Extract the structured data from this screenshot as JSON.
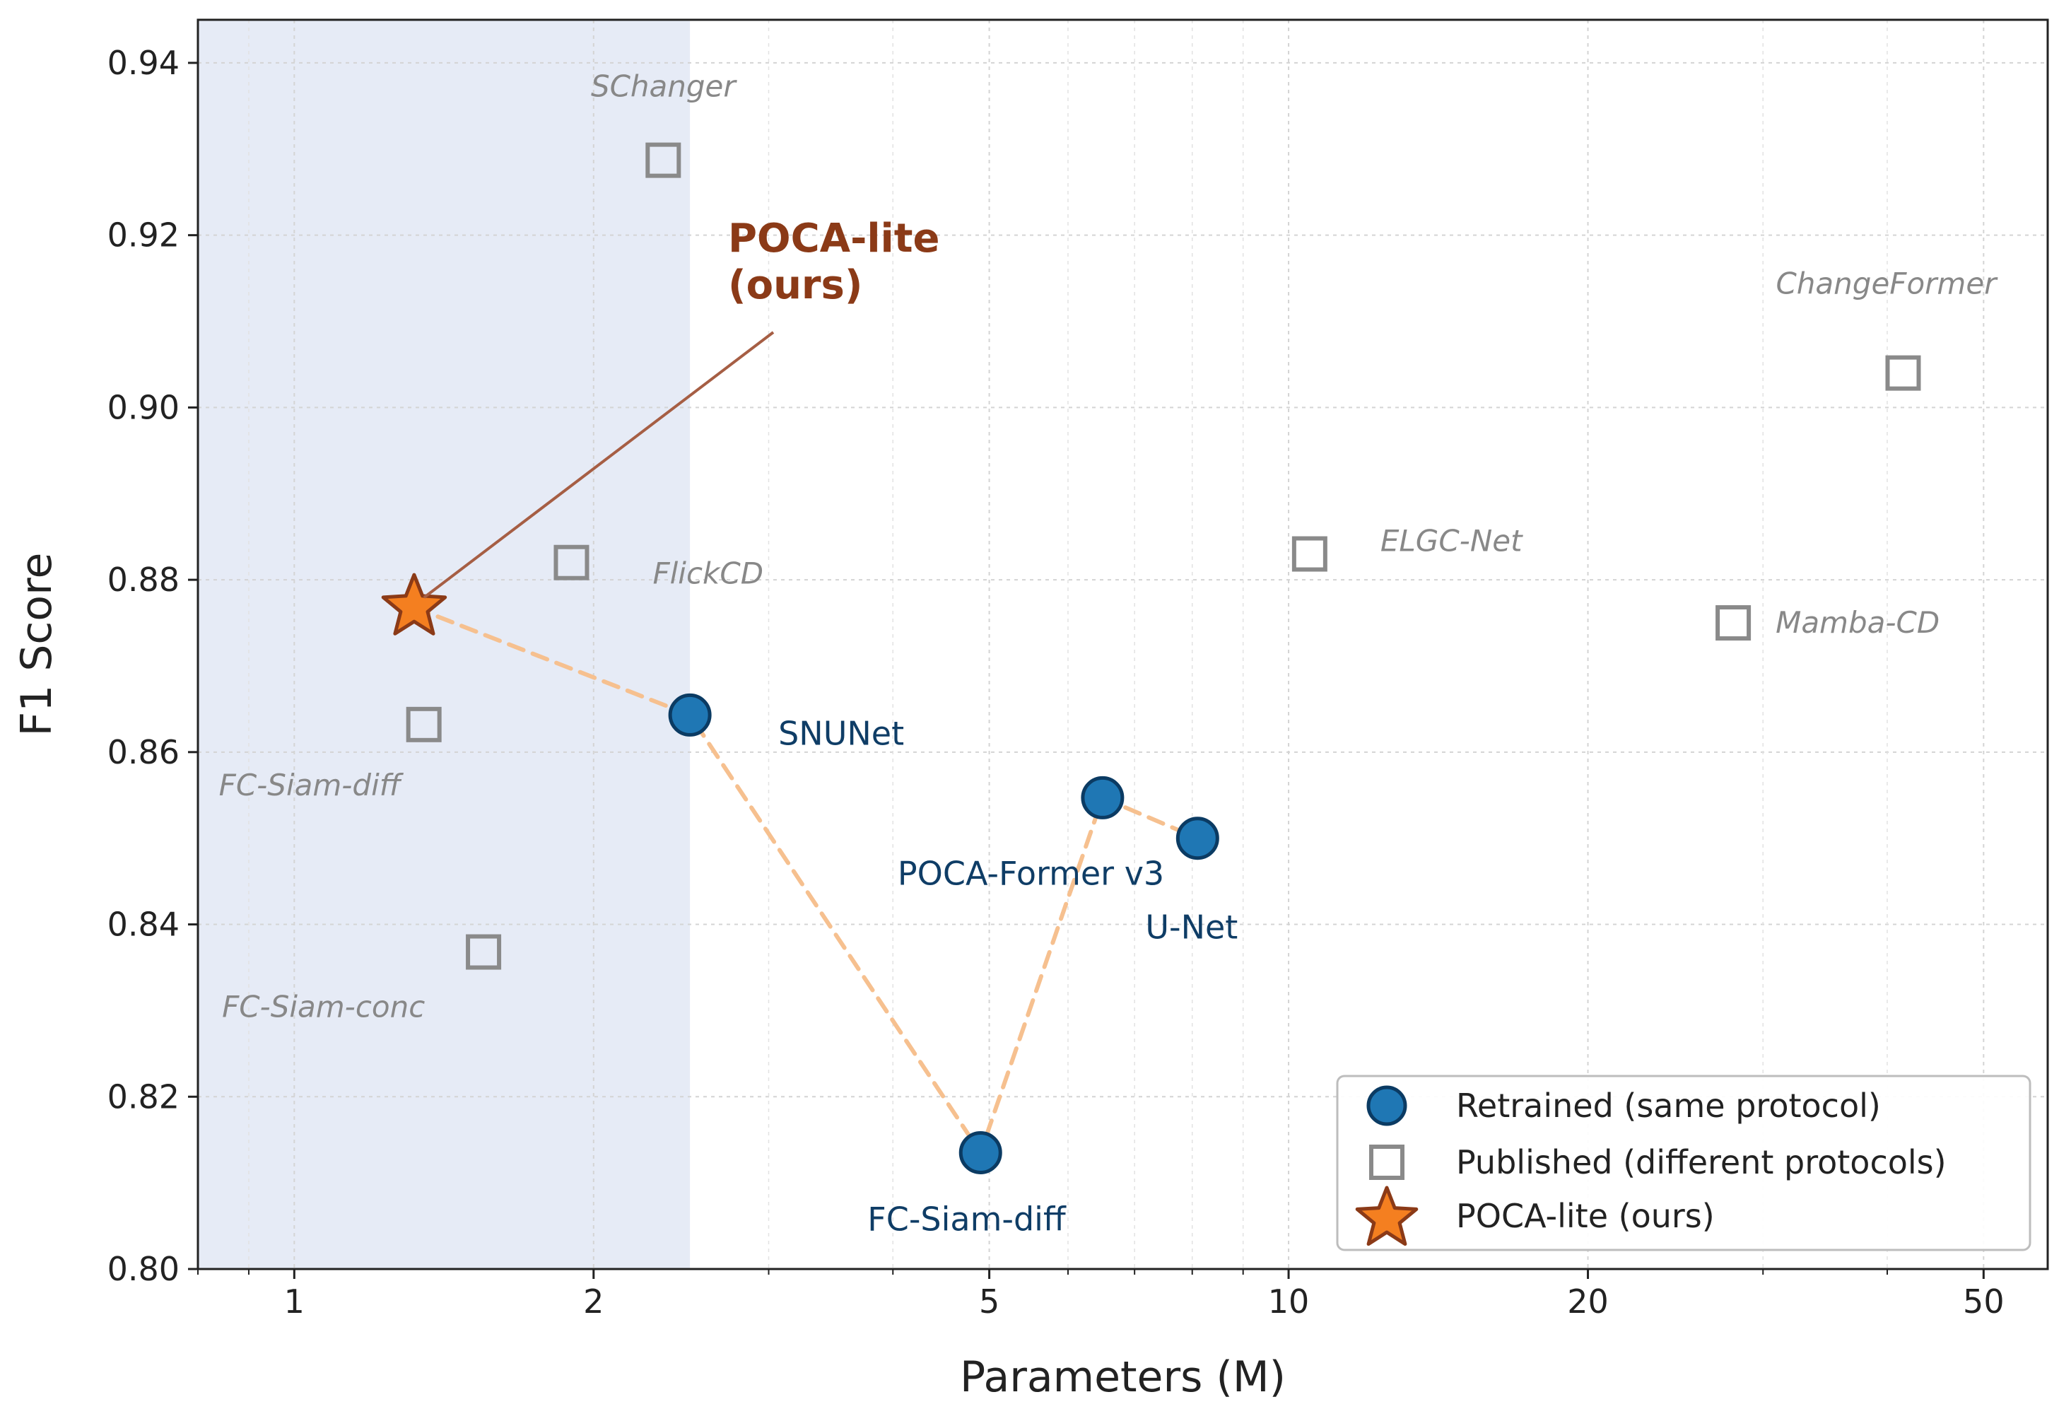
{
  "colors": {
    "retrained_fill": "#1f77b4",
    "retrained_edge": "#0b3b63",
    "published_edge": "#8a8a8a",
    "ours_fill": "#f47f20",
    "ours_edge": "#8b3a17",
    "ours_text": "#8b3a17",
    "retrained_text": "#0f3d66",
    "published_text": "#888888",
    "trend_line": "#f6c08f",
    "shade": "#e6ebf6",
    "arrow": "#a65e44"
  },
  "chart_data": {
    "type": "scatter",
    "xscale": "log",
    "xlim": [
      0.8,
      58
    ],
    "ylim": [
      0.8,
      0.945
    ],
    "xlabel": "Parameters (M)",
    "ylabel": "F1 Score",
    "x_ticks": [
      1,
      2,
      5,
      10,
      20,
      50
    ],
    "x_tick_labels": [
      "1",
      "2",
      "5",
      "10",
      "20",
      "50"
    ],
    "y_ticks": [
      0.8,
      0.82,
      0.84,
      0.86,
      0.88,
      0.9,
      0.92,
      0.94
    ],
    "y_tick_labels": [
      "0.80",
      "0.82",
      "0.84",
      "0.86",
      "0.88",
      "0.90",
      "0.92",
      "0.94"
    ],
    "grid": true,
    "shaded_region": {
      "x_from": 0.8,
      "x_to": 2.5
    },
    "series": [
      {
        "name": "Retrained (same protocol)",
        "marker": "circle",
        "points": [
          {
            "label": "SNUNet",
            "x": 2.5,
            "y": 0.8643
          },
          {
            "label": "FC-Siam-diff",
            "x": 4.9,
            "y": 0.8135
          },
          {
            "label": "POCA-Former v3",
            "x": 6.5,
            "y": 0.8547
          },
          {
            "label": "U-Net",
            "x": 8.1,
            "y": 0.85
          }
        ]
      },
      {
        "name": "Published (different protocols)",
        "marker": "square",
        "points": [
          {
            "label": "SChanger",
            "x": 2.35,
            "y": 0.9287
          },
          {
            "label": "FlickCD",
            "x": 1.9,
            "y": 0.882
          },
          {
            "label": "FC-Siam-diff",
            "x": 1.35,
            "y": 0.8632
          },
          {
            "label": "FC-Siam-conc",
            "x": 1.55,
            "y": 0.8368
          },
          {
            "label": "ELGC-Net",
            "x": 10.5,
            "y": 0.883
          },
          {
            "label": "Mamba-CD",
            "x": 28.0,
            "y": 0.875
          },
          {
            "label": "ChangeFormer",
            "x": 41.5,
            "y": 0.904
          }
        ]
      },
      {
        "name": "POCA-lite (ours)",
        "marker": "star",
        "points": [
          {
            "label": "POCA-lite\n(ours)",
            "x": 1.32,
            "y": 0.8768
          }
        ]
      }
    ],
    "trend_line_order": [
      "POCA-lite (ours)",
      "SNUNet",
      "FC-Siam-diff",
      "POCA-Former v3",
      "U-Net"
    ],
    "annotation": {
      "text_lines": [
        "POCA-lite",
        "(ours)"
      ],
      "points_to": "POCA-lite (ours)"
    },
    "legend": {
      "position": "bottom-right",
      "entries": [
        "Retrained (same protocol)",
        "Published (different protocols)",
        "POCA-lite (ours)"
      ]
    }
  }
}
